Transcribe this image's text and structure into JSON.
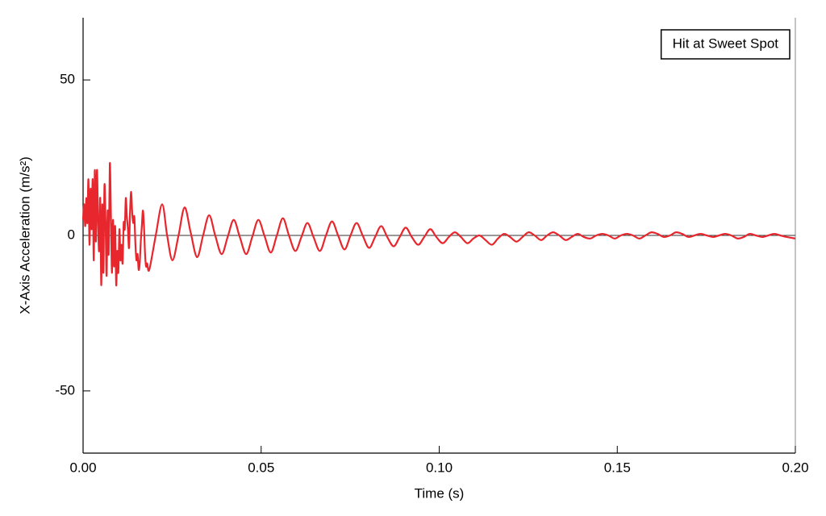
{
  "chart_data": {
    "type": "line",
    "xlabel": "Time (s)",
    "ylabel": "X-Axis Acceleration (m/s²)",
    "xlim": [
      0,
      0.2
    ],
    "ylim": [
      -70,
      70
    ],
    "xticks": [
      {
        "value": 0,
        "label": "0.00"
      },
      0.05,
      {
        "value": 0.1,
        "label": "0.10"
      },
      0.15,
      {
        "value": 0.2,
        "label": "0.20"
      }
    ],
    "yticks": [
      -50,
      0,
      50
    ],
    "zero_line": true,
    "legend": "upper right",
    "x": [
      0.0,
      0.0003,
      0.0006,
      0.0009,
      0.0012,
      0.0015,
      0.0018,
      0.0021,
      0.0024,
      0.0027,
      0.003,
      0.0033,
      0.0036,
      0.0039,
      0.0042,
      0.0045,
      0.0048,
      0.0051,
      0.0054,
      0.0057,
      0.006,
      0.0063,
      0.0066,
      0.0069,
      0.0072,
      0.0075,
      0.0078,
      0.0081,
      0.0084,
      0.0087,
      0.009,
      0.0093,
      0.0096,
      0.0099,
      0.0102,
      0.0105,
      0.0108,
      0.0111,
      0.0114,
      0.0117,
      0.012,
      0.0123,
      0.0126,
      0.0129,
      0.0132,
      0.0135,
      0.0138,
      0.0141,
      0.0144,
      0.0147,
      0.015,
      0.0153,
      0.0156,
      0.0159,
      0.0162,
      0.0165,
      0.0168,
      0.0171,
      0.0174,
      0.0177,
      0.018,
      0.0186,
      0.0204,
      0.0222,
      0.0236,
      0.0251,
      0.0268,
      0.0285,
      0.0302,
      0.032,
      0.0337,
      0.0354,
      0.0371,
      0.0389,
      0.0406,
      0.0423,
      0.044,
      0.0458,
      0.0475,
      0.0492,
      0.0509,
      0.0527,
      0.0544,
      0.0561,
      0.0578,
      0.0596,
      0.0613,
      0.063,
      0.0647,
      0.0665,
      0.0682,
      0.0699,
      0.0716,
      0.0734,
      0.0751,
      0.0768,
      0.0785,
      0.0803,
      0.082,
      0.0837,
      0.0854,
      0.0872,
      0.0889,
      0.0906,
      0.0923,
      0.0941,
      0.0958,
      0.0975,
      0.0992,
      0.101,
      0.1027,
      0.1044,
      0.1061,
      0.1079,
      0.1096,
      0.1113,
      0.113,
      0.1148,
      0.1165,
      0.1182,
      0.1199,
      0.1217,
      0.1234,
      0.1251,
      0.1268,
      0.1286,
      0.1303,
      0.132,
      0.1337,
      0.1355,
      0.1372,
      0.1389,
      0.1406,
      0.1424,
      0.1441,
      0.1458,
      0.1475,
      0.1493,
      0.151,
      0.1527,
      0.1544,
      0.1562,
      0.1579,
      0.1596,
      0.1613,
      0.1631,
      0.1648,
      0.1665,
      0.1682,
      0.17,
      0.1717,
      0.1734,
      0.1751,
      0.1769,
      0.1786,
      0.1803,
      0.182,
      0.1838,
      0.1855,
      0.1872,
      0.1889,
      0.1907,
      0.1924,
      0.1941,
      0.1958,
      0.1976,
      0.2
    ],
    "series": [
      {
        "name": "Hit at Sweet Spot",
        "color": "#e8262d",
        "values": [
          5,
          10,
          3,
          12,
          4,
          18,
          -3,
          15,
          2,
          18,
          -8,
          21,
          -2,
          21,
          5,
          -5,
          12,
          -16,
          10,
          -12,
          16,
          5,
          -13,
          8,
          -6,
          23,
          8,
          -12,
          5,
          -10,
          3,
          -16,
          -5,
          -12,
          2,
          -8,
          -3,
          -9,
          4,
          2,
          12,
          6,
          2,
          -4,
          8,
          14,
          7,
          4,
          6,
          -3,
          -8,
          -6,
          -11,
          -9,
          -2,
          3,
          8,
          3,
          -6,
          -10,
          -9,
          -11,
          0,
          10,
          0,
          -8,
          0,
          9,
          1,
          -7,
          0,
          6.5,
          0,
          -6,
          -0.5,
          5,
          -0.5,
          -6,
          -0.5,
          5,
          0,
          -5.5,
          0,
          5.5,
          0,
          -5,
          -0.5,
          4,
          -0.5,
          -5,
          0,
          4.5,
          0,
          -4.5,
          0,
          4,
          0,
          -4,
          -0.5,
          3,
          -0.5,
          -3.5,
          -0.5,
          2.5,
          -0.5,
          -3,
          -0.5,
          2,
          -0.5,
          -2.5,
          -0.5,
          1,
          -0.5,
          -2.5,
          -1,
          0,
          -1.5,
          -3,
          -1,
          0.5,
          -0.5,
          -2,
          -0.5,
          1,
          0,
          -1.5,
          0,
          1,
          0,
          -1.5,
          -0.5,
          0.5,
          -0.5,
          -1,
          0,
          0.5,
          0,
          -1,
          0,
          0.5,
          0,
          -1,
          0,
          1,
          0.5,
          -0.5,
          0,
          1,
          0.5,
          -0.5,
          0,
          0.5,
          0,
          -0.5,
          0,
          0.5,
          0,
          -1,
          -0.5,
          0.5,
          0,
          -0.5,
          0,
          0.5,
          0,
          -0.5,
          -1
        ]
      }
    ]
  }
}
